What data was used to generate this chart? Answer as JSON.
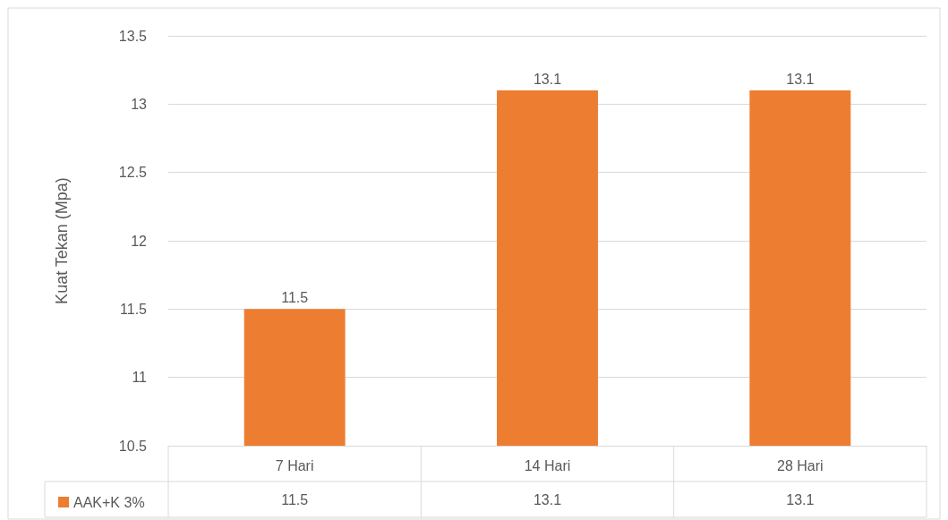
{
  "chart_data": {
    "type": "bar",
    "ylabel": "Kuat Tekan (Mpa)",
    "categories": [
      "7 Hari",
      "14 Hari",
      "28 Hari"
    ],
    "series": [
      {
        "name": "AAK+K 3%",
        "color": "#ed7d31",
        "values": [
          11.5,
          13.1,
          13.1
        ],
        "value_labels": [
          "11.5",
          "13.1",
          "13.1"
        ]
      }
    ],
    "ylim": [
      10.5,
      13.5
    ],
    "yticks": [
      10.5,
      11,
      11.5,
      12,
      12.5,
      13,
      13.5
    ],
    "annotations": [
      "11.5",
      "13.1",
      "13.1"
    ],
    "grid": "y",
    "legend": "bottom"
  }
}
